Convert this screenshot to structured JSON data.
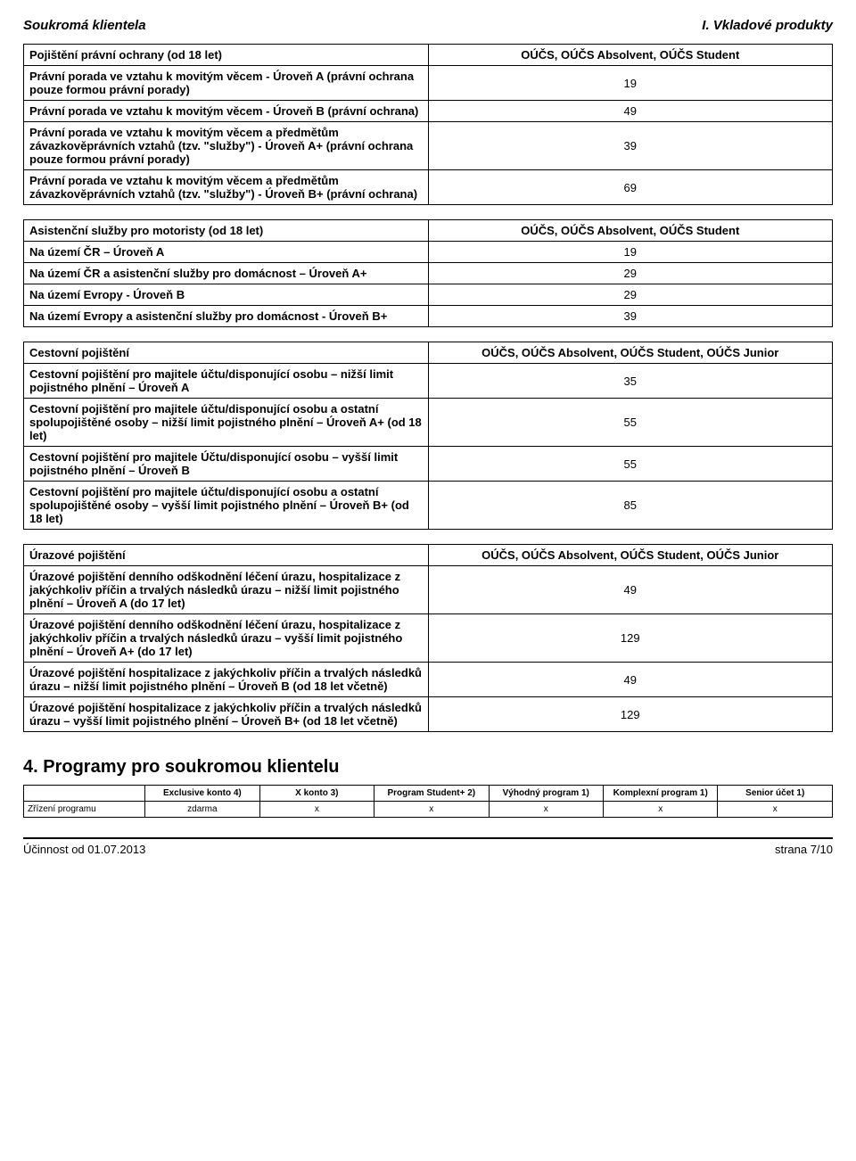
{
  "header": {
    "left": "Soukromá klientela",
    "right": "I. Vkladové produkty"
  },
  "tables": [
    {
      "header": {
        "left": "Pojištění právní ochrany (od 18 let)",
        "right": "OÚČS, OÚČS Absolvent, OÚČS Student"
      },
      "rows": [
        {
          "label": "Právní porada ve vztahu k movitým věcem - Úroveň A (právní ochrana pouze formou právní porady)",
          "value": "19"
        },
        {
          "label": "Právní porada ve vztahu k movitým věcem - Úroveň B (právní ochrana)",
          "value": "49"
        },
        {
          "label": "Právní porada ve vztahu k movitým věcem a předmětům závazkověprávních vztahů (tzv. \"služby\") - Úroveň A+ (právní ochrana pouze formou právní porady)",
          "value": "39"
        },
        {
          "label": "Právní porada ve vztahu k movitým věcem a předmětům závazkověprávních vztahů (tzv. \"služby\") - Úroveň B+ (právní ochrana)",
          "value": "69"
        }
      ]
    },
    {
      "header": {
        "left": "Asistenční služby pro motoristy (od 18 let)",
        "right": "OÚČS, OÚČS Absolvent, OÚČS Student"
      },
      "rows": [
        {
          "label": "Na území ČR – Úroveň A",
          "value": "19"
        },
        {
          "label": "Na území ČR a asistenční služby pro domácnost – Úroveň A+",
          "value": "29"
        },
        {
          "label": "Na území Evropy - Úroveň B",
          "value": "29"
        },
        {
          "label": "Na území Evropy a asistenční služby pro domácnost - Úroveň B+",
          "value": "39"
        }
      ]
    },
    {
      "header": {
        "left": "Cestovní pojištění",
        "right": "OÚČS, OÚČS Absolvent, OÚČS Student, OÚČS Junior"
      },
      "rows": [
        {
          "label": "Cestovní pojištění pro majitele účtu/disponující osobu – nižší limit pojistného plnění – Úroveň A",
          "value": "35"
        },
        {
          "label": "Cestovní pojištění pro majitele účtu/disponující osobu a ostatní spolupojištěné osoby – nižší limit pojistného plnění – Úroveň A+ (od 18 let)",
          "value": "55"
        },
        {
          "label": "Cestovní pojištění pro majitele Účtu/disponující osobu – vyšší limit pojistného plnění – Úroveň B",
          "value": "55"
        },
        {
          "label": "Cestovní pojištění pro majitele účtu/disponující osobu a ostatní spolupojištěné osoby – vyšší limit pojistného plnění – Úroveň B+ (od 18 let)",
          "value": "85"
        }
      ]
    },
    {
      "header": {
        "left": "Úrazové pojištění",
        "right": "OÚČS, OÚČS Absolvent, OÚČS Student, OÚČS Junior"
      },
      "rows": [
        {
          "label": "Úrazové pojištění denního odškodnění léčení úrazu, hospitalizace z jakýchkoliv příčin a trvalých následků úrazu – nižší limit pojistného plnění – Úroveň A (do 17 let)",
          "value": "49"
        },
        {
          "label": "Úrazové pojištění denního odškodnění léčení úrazu, hospitalizace z jakýchkoliv příčin a trvalých následků úrazu – vyšší limit pojistného plnění – Úroveň A+ (do 17 let)",
          "value": "129"
        },
        {
          "label": "Úrazové pojištění hospitalizace z jakýchkoliv příčin a trvalých následků úrazu – nižší limit pojistného plnění – Úroveň B (od 18 let včetně)",
          "value": "49"
        },
        {
          "label": "Úrazové pojištění hospitalizace z jakýchkoliv příčin a trvalých následků úrazu – vyšší limit pojistného plnění – Úroveň B+ (od 18 let včetně)",
          "value": "129"
        }
      ]
    }
  ],
  "section4": {
    "title": "4. Programy pro soukromou klientelu",
    "columns": [
      "",
      "Exclusive konto 4)",
      "X konto 3)",
      "Program Student+ 2)",
      "Výhodný program 1)",
      "Komplexní program 1)",
      "Senior účet 1)"
    ],
    "row": {
      "label": "Zřízení programu",
      "values": [
        "zdarma",
        "x",
        "x",
        "x",
        "x",
        "x"
      ]
    }
  },
  "footer": {
    "left": "Účinnost od 01.07.2013",
    "right": "strana 7/10"
  }
}
